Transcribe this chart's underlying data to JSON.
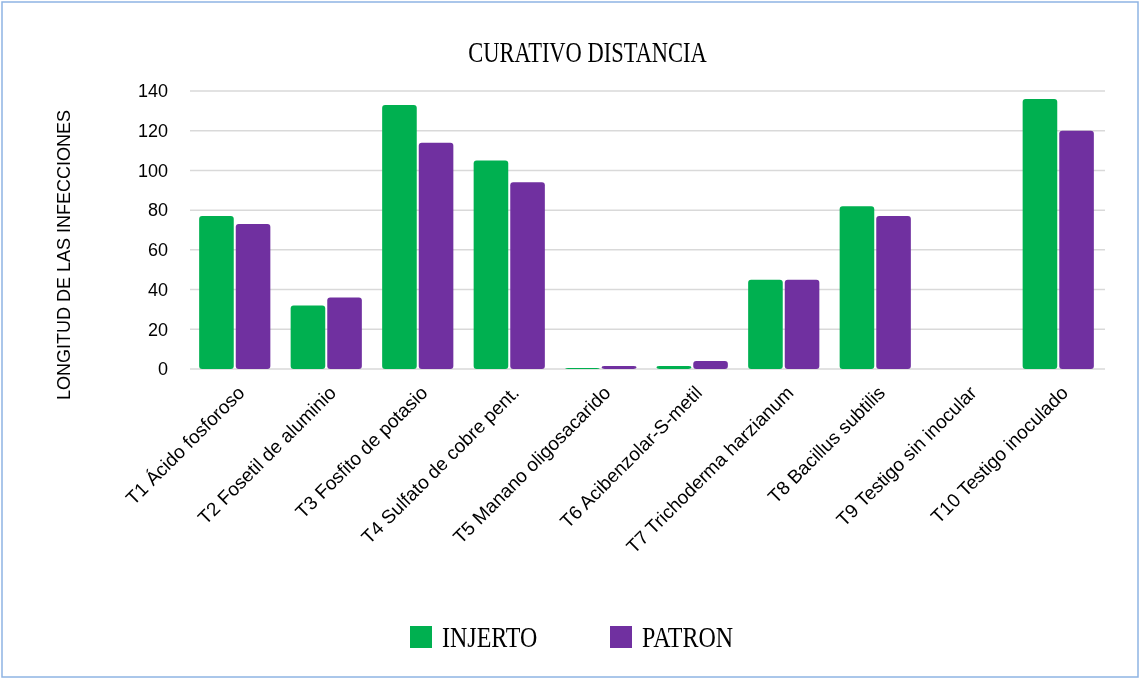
{
  "chart_data": {
    "type": "bar",
    "title": "CURATIVO DISTANCIA",
    "ylabel": "LONGITUD DE LAS INFECCIONES",
    "categories": [
      "T1 Ácido fosforoso",
      "T2 Fosetil de aluminio",
      "T3 Fosfito de potasio",
      "T4 Sulfato de cobre pent.",
      "T5 Manano oligosacarido",
      "T6 Acibenzolar-S-metil",
      "T7 Trichoderma harzianum",
      "T8 Bacillus subtilis",
      "T9 Testigo sin inocular",
      "T10 Testigo inoculado"
    ],
    "series": [
      {
        "name": "INJERTO",
        "color": "#00b050",
        "values": [
          77,
          32,
          133,
          105,
          0.5,
          1.5,
          45,
          82,
          0,
          136
        ]
      },
      {
        "name": "PATRON",
        "color": "#7030a0",
        "values": [
          73,
          36,
          114,
          94,
          1.5,
          4,
          45,
          77,
          0,
          120
        ]
      }
    ],
    "ylim": [
      0,
      140
    ],
    "yticks": [
      0,
      20,
      40,
      60,
      80,
      100,
      120,
      140
    ],
    "grid": "y",
    "legend": "bottom"
  }
}
